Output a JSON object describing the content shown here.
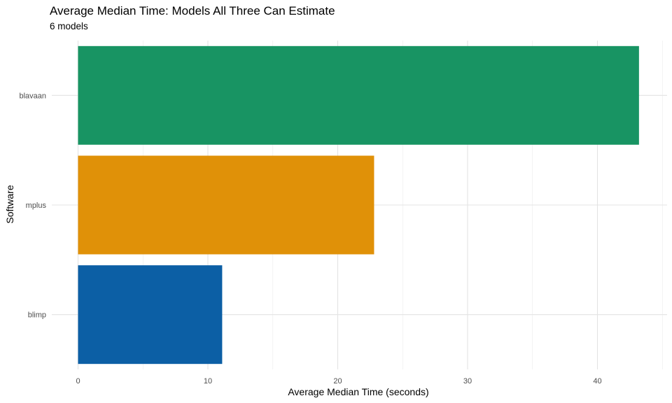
{
  "chart_data": {
    "type": "bar",
    "orientation": "horizontal",
    "title": "Average Median Time: Models All Three Can Estimate",
    "subtitle": "6 models",
    "xlabel": "Average Median Time (seconds)",
    "ylabel": "Software",
    "categories": [
      "blavaan",
      "mplus",
      "blimp"
    ],
    "values": [
      43.2,
      22.8,
      11.1
    ],
    "colors": [
      "#189463",
      "#E09108",
      "#0C5FA5"
    ],
    "xlim": [
      0,
      45.5
    ],
    "xticks": [
      0,
      10,
      20,
      30,
      40
    ],
    "x_minor_ticks": [
      5,
      15,
      25,
      35,
      45
    ],
    "grid": true,
    "legend": "none"
  }
}
